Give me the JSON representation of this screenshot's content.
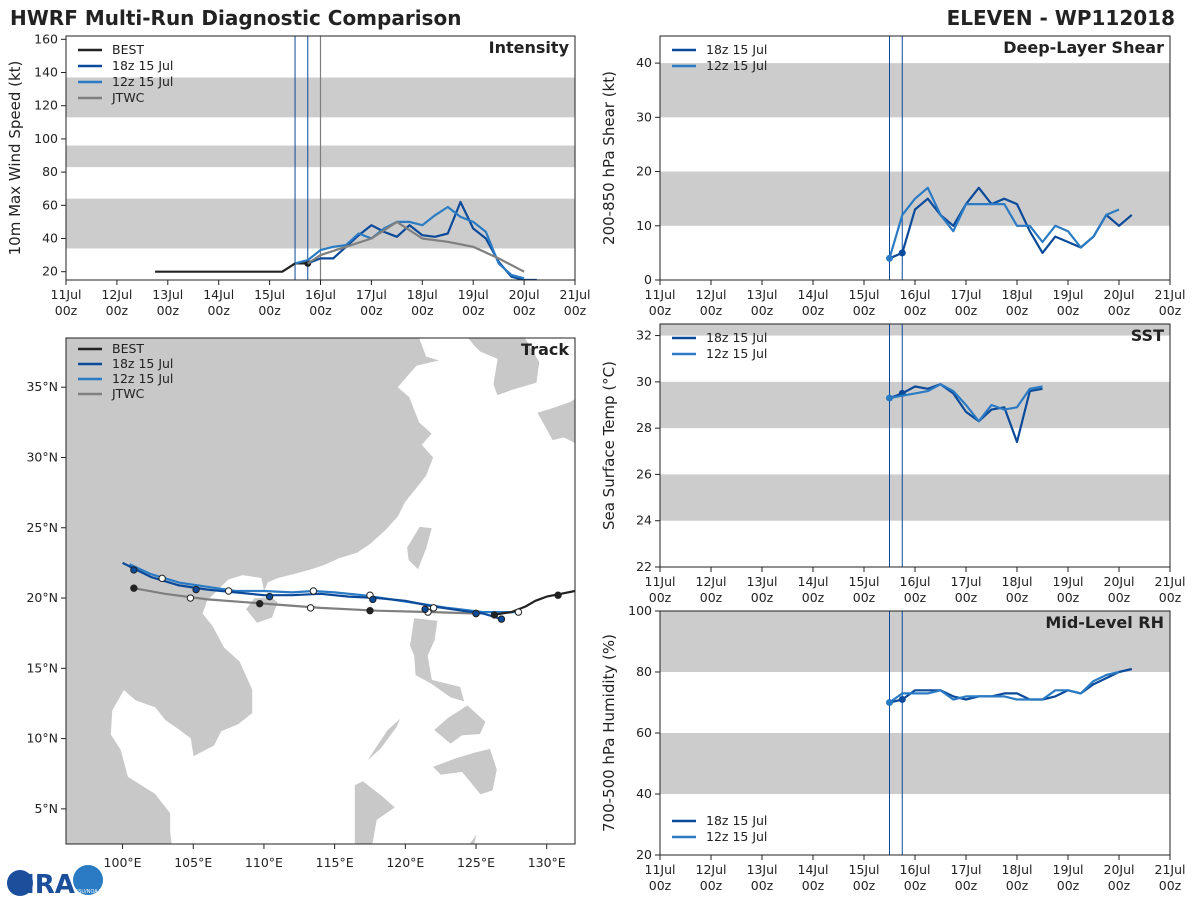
{
  "header": {
    "title": "HWRF Multi-Run Diagnostic Comparison",
    "storm": "ELEVEN - WP112018"
  },
  "logo": {
    "text": "CIRA",
    "subtext": "CSU/NOAA"
  },
  "colors": {
    "best": "#222222",
    "run18z": "#0b4a9a",
    "run12z": "#2a7bc4",
    "jtwc": "#7f7f7f",
    "band": "#cccccc",
    "vline": "#0b4a9a",
    "vline_gray": "#7f7f7f",
    "land": "#c8c8c8"
  },
  "time_axis": {
    "ticks": [
      {
        "v": 0,
        "l1": "11Jul",
        "l2": "00z"
      },
      {
        "v": 1,
        "l1": "12Jul",
        "l2": "00z"
      },
      {
        "v": 2,
        "l1": "13Jul",
        "l2": "00z"
      },
      {
        "v": 3,
        "l1": "14Jul",
        "l2": "00z"
      },
      {
        "v": 4,
        "l1": "15Jul",
        "l2": "00z"
      },
      {
        "v": 5,
        "l1": "16Jul",
        "l2": "00z"
      },
      {
        "v": 6,
        "l1": "17Jul",
        "l2": "00z"
      },
      {
        "v": 7,
        "l1": "18Jul",
        "l2": "00z"
      },
      {
        "v": 8,
        "l1": "19Jul",
        "l2": "00z"
      },
      {
        "v": 9,
        "l1": "20Jul",
        "l2": "00z"
      },
      {
        "v": 10,
        "l1": "21Jul",
        "l2": "00z"
      }
    ],
    "init_times": [
      4.5,
      4.75
    ],
    "jtwc_time": 5.0
  },
  "chart_data": [
    {
      "id": "intensity",
      "type": "line",
      "title": "Intensity",
      "ylabel": "10m Max Wind Speed (kt)",
      "xlabel": "",
      "xlim": [
        0,
        10
      ],
      "ylim": [
        15,
        162
      ],
      "yticks": [
        20,
        40,
        60,
        80,
        100,
        120,
        140,
        160
      ],
      "bands": [
        [
          34,
          64
        ],
        [
          83,
          96
        ],
        [
          113,
          137
        ]
      ],
      "legend": [
        "BEST",
        "18z 15 Jul",
        "12z 15 Jul",
        "JTWC"
      ],
      "series": [
        {
          "name": "BEST",
          "key": "best",
          "x": [
            1.75,
            2.0,
            2.5,
            3.0,
            3.5,
            4.0,
            4.25,
            4.5,
            4.75
          ],
          "y": [
            20,
            20,
            20,
            20,
            20,
            20,
            20,
            25,
            25
          ],
          "marker_at": 4.75
        },
        {
          "name": "18z 15 Jul",
          "key": "run18z",
          "x": [
            4.75,
            5.0,
            5.25,
            5.5,
            5.75,
            6.0,
            6.25,
            6.5,
            6.75,
            7.0,
            7.25,
            7.5,
            7.75,
            8.0,
            8.25,
            8.5,
            8.75,
            9.0,
            9.25
          ],
          "y": [
            25,
            28,
            28,
            35,
            42,
            48,
            44,
            41,
            48,
            42,
            41,
            43,
            62,
            46,
            40,
            26,
            17,
            15,
            15
          ]
        },
        {
          "name": "12z 15 Jul",
          "key": "run12z",
          "x": [
            4.5,
            4.75,
            5.0,
            5.25,
            5.5,
            5.75,
            6.0,
            6.25,
            6.5,
            6.75,
            7.0,
            7.25,
            7.5,
            7.75,
            8.0,
            8.25,
            8.5,
            8.75,
            9.0
          ],
          "y": [
            25,
            27,
            33,
            35,
            36,
            43,
            40,
            46,
            50,
            50,
            48,
            54,
            59,
            53,
            50,
            44,
            25,
            18,
            16
          ]
        },
        {
          "name": "JTWC",
          "key": "jtwc",
          "x": [
            4.75,
            5.0,
            5.5,
            6.0,
            6.5,
            7.0,
            7.5,
            8.0,
            8.5,
            9.0
          ],
          "y": [
            25,
            30,
            35,
            40,
            50,
            40,
            38,
            35,
            28,
            20
          ]
        }
      ]
    },
    {
      "id": "shear",
      "type": "line",
      "title": "Deep-Layer Shear",
      "ylabel": "200-850 hPa Shear (kt)",
      "xlabel": "",
      "xlim": [
        0,
        10
      ],
      "ylim": [
        0,
        45
      ],
      "yticks": [
        0,
        10,
        20,
        30,
        40
      ],
      "bands": [
        [
          10,
          20
        ],
        [
          30,
          40
        ]
      ],
      "legend": [
        "18z 15 Jul",
        "12z 15 Jul"
      ],
      "series": [
        {
          "name": "18z 15 Jul",
          "key": "run18z",
          "x": [
            4.5,
            4.75,
            5.0,
            5.25,
            5.5,
            5.75,
            6.0,
            6.25,
            6.5,
            6.75,
            7.0,
            7.25,
            7.5,
            7.75,
            8.0,
            8.25,
            8.5,
            8.75,
            9.0,
            9.25
          ],
          "y": [
            4,
            5,
            13,
            15,
            12,
            10,
            14,
            17,
            14,
            15,
            14,
            9,
            5,
            8,
            7,
            6,
            8,
            12,
            10,
            12
          ],
          "marker_at": 4.75
        },
        {
          "name": "12z 15 Jul",
          "key": "run12z",
          "x": [
            4.5,
            4.75,
            5.0,
            5.25,
            5.5,
            5.75,
            6.0,
            6.25,
            6.5,
            6.75,
            7.0,
            7.25,
            7.5,
            7.75,
            8.0,
            8.25,
            8.5,
            8.75,
            9.0
          ],
          "y": [
            4,
            12,
            15,
            17,
            12,
            9,
            14,
            14,
            14,
            14,
            10,
            10,
            7,
            10,
            9,
            6,
            8,
            12,
            13
          ],
          "marker_at": 4.5
        }
      ]
    },
    {
      "id": "sst",
      "type": "line",
      "title": "SST",
      "ylabel": "Sea Surface Temp (°C)",
      "xlabel": "",
      "xlim": [
        0,
        10
      ],
      "ylim": [
        22,
        32.5
      ],
      "yticks": [
        22,
        24,
        26,
        28,
        30,
        32
      ],
      "bands": [
        [
          24,
          26
        ],
        [
          28,
          30
        ],
        [
          32,
          32.5
        ]
      ],
      "legend": [
        "18z 15 Jul",
        "12z 15 Jul"
      ],
      "series": [
        {
          "name": "18z 15 Jul",
          "key": "run18z",
          "x": [
            4.5,
            4.75,
            5.0,
            5.25,
            5.5,
            5.75,
            6.0,
            6.25,
            6.5,
            6.75,
            7.0,
            7.25,
            7.5
          ],
          "y": [
            29.3,
            29.5,
            29.8,
            29.7,
            29.9,
            29.5,
            28.7,
            28.3,
            28.8,
            28.9,
            27.4,
            29.6,
            29.7
          ],
          "marker_at": 4.75
        },
        {
          "name": "12z 15 Jul",
          "key": "run12z",
          "x": [
            4.5,
            4.75,
            5.0,
            5.25,
            5.5,
            5.75,
            6.0,
            6.25,
            6.5,
            6.75,
            7.0,
            7.25,
            7.5
          ],
          "y": [
            29.3,
            29.4,
            29.5,
            29.6,
            29.9,
            29.6,
            29.0,
            28.3,
            29.0,
            28.8,
            28.9,
            29.7,
            29.8
          ],
          "marker_at": 4.5
        }
      ]
    },
    {
      "id": "rh",
      "type": "line",
      "title": "Mid-Level RH",
      "ylabel": "700-500 hPa Humidity (%)",
      "xlabel": "",
      "xlim": [
        0,
        10
      ],
      "ylim": [
        20,
        100
      ],
      "yticks": [
        20,
        40,
        60,
        80,
        100
      ],
      "bands": [
        [
          40,
          60
        ],
        [
          80,
          100
        ]
      ],
      "legend": [
        "18z 15 Jul",
        "12z 15 Jul"
      ],
      "series": [
        {
          "name": "18z 15 Jul",
          "key": "run18z",
          "x": [
            4.5,
            4.75,
            5.0,
            5.25,
            5.5,
            5.75,
            6.0,
            6.25,
            6.5,
            6.75,
            7.0,
            7.25,
            7.5,
            7.75,
            8.0,
            8.25,
            8.5,
            8.75,
            9.0,
            9.25
          ],
          "y": [
            70,
            71,
            74,
            74,
            74,
            72,
            71,
            72,
            72,
            73,
            73,
            71,
            71,
            72,
            74,
            73,
            76,
            78,
            80,
            81
          ],
          "marker_at": 4.75
        },
        {
          "name": "12z 15 Jul",
          "key": "run12z",
          "x": [
            4.5,
            4.75,
            5.0,
            5.25,
            5.5,
            5.75,
            6.0,
            6.25,
            6.5,
            6.75,
            7.0,
            7.25,
            7.5,
            7.75,
            8.0,
            8.25,
            8.5,
            8.75,
            9.0
          ],
          "y": [
            70,
            73,
            73,
            73,
            74,
            71,
            72,
            72,
            72,
            72,
            71,
            71,
            71,
            74,
            74,
            73,
            77,
            79,
            80
          ],
          "marker_at": 4.5
        }
      ]
    },
    {
      "id": "track",
      "type": "line",
      "title": "Track",
      "xlabel": "",
      "ylabel": "",
      "xlim": [
        96,
        132
      ],
      "ylim": [
        2.5,
        38.5
      ],
      "xticks": [
        {
          "v": 100,
          "l": "100°E"
        },
        {
          "v": 105,
          "l": "105°E"
        },
        {
          "v": 110,
          "l": "110°E"
        },
        {
          "v": 115,
          "l": "115°E"
        },
        {
          "v": 120,
          "l": "120°E"
        },
        {
          "v": 125,
          "l": "125°E"
        },
        {
          "v": 130,
          "l": "130°E"
        }
      ],
      "yticks": [
        {
          "v": 5,
          "l": "5°N"
        },
        {
          "v": 10,
          "l": "10°N"
        },
        {
          "v": 15,
          "l": "15°N"
        },
        {
          "v": 20,
          "l": "20°N"
        },
        {
          "v": 25,
          "l": "25°N"
        },
        {
          "v": 30,
          "l": "30°N"
        },
        {
          "v": 35,
          "l": "35°N"
        }
      ],
      "legend": [
        "BEST",
        "18z 15 Jul",
        "12z 15 Jul",
        "JTWC"
      ],
      "series": [
        {
          "name": "BEST",
          "key": "best",
          "lon": [
            132.0,
            131.0,
            130.0,
            129.2,
            128.5,
            127.5,
            126.8,
            126.3
          ],
          "lat": [
            20.5,
            20.3,
            20.1,
            19.8,
            19.4,
            19.0,
            18.9,
            18.8
          ],
          "dots": [
            [
              130.8,
              20.2
            ],
            [
              126.3,
              18.8
            ]
          ],
          "dot_style": "filled"
        },
        {
          "name": "18z 15 Jul",
          "key": "run18z",
          "lon": [
            126.8,
            125.5,
            124.0,
            122.0,
            120.0,
            118.0,
            116.0,
            114.0,
            112.0,
            110.0,
            108.0,
            106.0,
            104.0,
            102.0,
            100.0
          ],
          "lat": [
            18.5,
            18.9,
            19.1,
            19.4,
            19.8,
            20.0,
            20.1,
            20.3,
            20.2,
            20.2,
            20.4,
            20.6,
            20.9,
            21.5,
            22.5
          ],
          "dots": [
            [
              126.8,
              18.5
            ],
            [
              125.0,
              18.9
            ],
            [
              121.4,
              19.2
            ],
            [
              117.7,
              19.9
            ],
            [
              110.4,
              20.1
            ],
            [
              105.2,
              20.6
            ],
            [
              100.8,
              22.0
            ]
          ],
          "dot_style": "filled"
        },
        {
          "name": "12z 15 Jul",
          "key": "run12z",
          "lon": [
            128.0,
            125.5,
            123.0,
            121.0,
            119.0,
            117.0,
            115.0,
            113.5,
            112.0,
            110.0,
            108.0,
            106.0,
            104.0,
            102.0,
            100.5
          ],
          "lat": [
            19.0,
            19.0,
            19.3,
            19.6,
            19.9,
            20.2,
            20.4,
            20.5,
            20.4,
            20.5,
            20.5,
            20.8,
            21.1,
            21.7,
            22.4
          ],
          "dots": [
            [
              128.0,
              19.0
            ],
            [
              122.0,
              19.3
            ],
            [
              117.5,
              20.2
            ],
            [
              113.5,
              20.5
            ],
            [
              107.5,
              20.5
            ],
            [
              102.8,
              21.4
            ]
          ],
          "dot_style": "open"
        },
        {
          "name": "JTWC",
          "key": "jtwc",
          "lon": [
            125.0,
            122.0,
            118.0,
            114.0,
            110.0,
            106.0,
            103.0,
            100.8
          ],
          "lat": [
            18.9,
            19.0,
            19.1,
            19.3,
            19.6,
            19.9,
            20.3,
            20.7
          ],
          "dots": [
            [
              125.0,
              18.9
            ],
            [
              121.6,
              19.0
            ],
            [
              117.5,
              19.1
            ],
            [
              113.3,
              19.3
            ],
            [
              109.7,
              19.6
            ],
            [
              104.8,
              20.0
            ],
            [
              100.8,
              20.7
            ]
          ],
          "dot_style": "mixed"
        }
      ]
    }
  ]
}
